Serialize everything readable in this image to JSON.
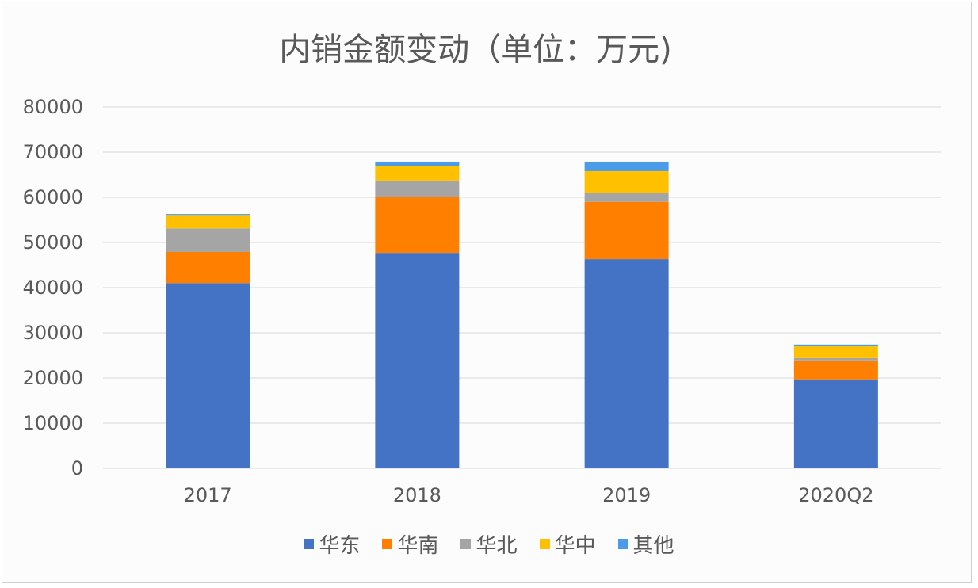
{
  "chart_data": {
    "type": "bar",
    "stacked": true,
    "title": "内销金额变动（单位：万元)",
    "categories": [
      "2017",
      "2018",
      "2019",
      "2020Q2"
    ],
    "ylim": [
      0,
      80000
    ],
    "yticks": [
      0,
      10000,
      20000,
      30000,
      40000,
      50000,
      60000,
      70000,
      80000
    ],
    "grid": true,
    "legend_position": "bottom",
    "series": [
      {
        "name": "华东",
        "color": "#4472c4",
        "values": [
          41000,
          47700,
          46300,
          19700
        ]
      },
      {
        "name": "华南",
        "color": "#ff7f00",
        "values": [
          6900,
          12300,
          12700,
          4200
        ]
      },
      {
        "name": "华北",
        "color": "#a5a5a5",
        "values": [
          5200,
          3700,
          1900,
          500
        ]
      },
      {
        "name": "华中",
        "color": "#ffc000",
        "values": [
          3000,
          3300,
          4900,
          2600
        ]
      },
      {
        "name": "其他",
        "color": "#4a9be8",
        "values": [
          200,
          900,
          2100,
          400
        ]
      }
    ]
  }
}
